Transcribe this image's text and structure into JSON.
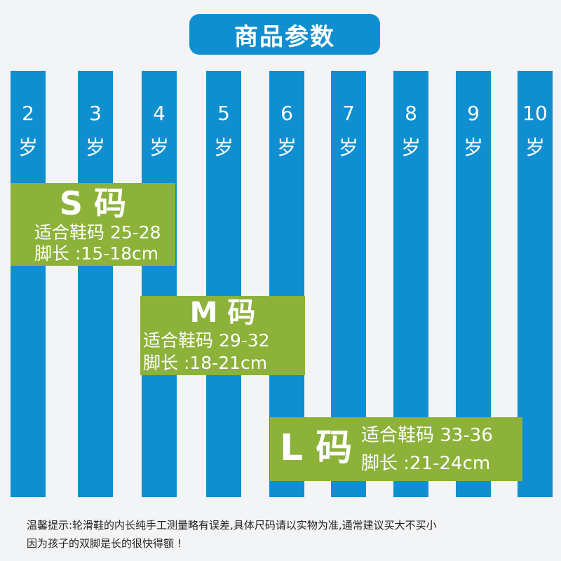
{
  "title": "商品参数",
  "columns": [
    {
      "num": "2",
      "unit": "岁"
    },
    {
      "num": "3",
      "unit": "岁"
    },
    {
      "num": "4",
      "unit": "岁"
    },
    {
      "num": "5",
      "unit": "岁"
    },
    {
      "num": "6",
      "unit": "岁"
    },
    {
      "num": "7",
      "unit": "岁"
    },
    {
      "num": "8",
      "unit": "岁"
    },
    {
      "num": "9",
      "unit": "岁"
    },
    {
      "num": "10",
      "unit": "岁"
    }
  ],
  "sizes": {
    "s": {
      "label": "S 码",
      "shoe": "适合鞋码 25-28",
      "foot": "脚长 :15-18cm"
    },
    "m": {
      "label": "M 码",
      "shoe": "适合鞋码 29-32",
      "foot": "脚长 :18-21cm"
    },
    "l": {
      "label": "L 码",
      "shoe": "适合鞋码 33-36",
      "foot": "脚长 :21-24cm"
    }
  },
  "footer": {
    "line1": "温馨提示:轮滑鞋的内长纯手工测量略有误差,具体尺码请以实物为准,通常建议买大不买小",
    "line2": "因为孩子的双脚是长的很快得额 !"
  },
  "colors": {
    "blue": "#0f8fcf",
    "green": "#8cb23a",
    "background": "#f3f4f6"
  }
}
